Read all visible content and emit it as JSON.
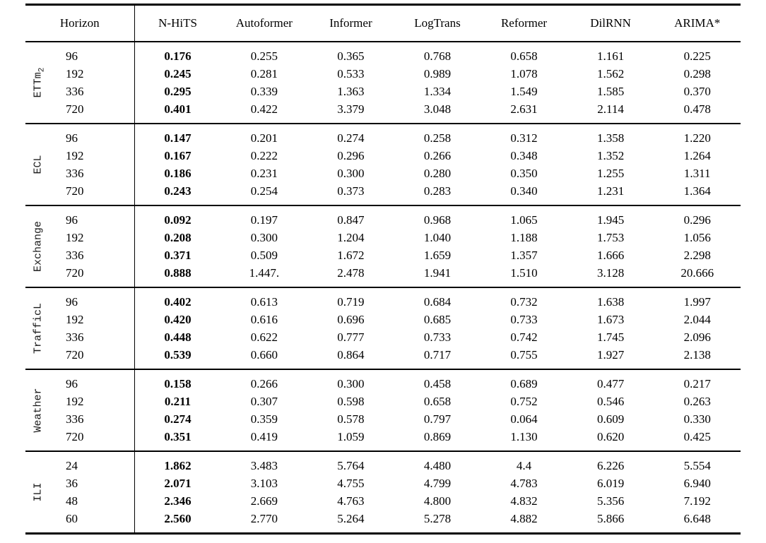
{
  "page": {
    "background_color": "#ffffff",
    "text_color": "#000000",
    "rule_color": "#000000"
  },
  "table": {
    "columns": [
      "Horizon",
      "N-HiTS",
      "Autoformer",
      "Informer",
      "LogTrans",
      "Reformer",
      "DilRNN",
      "ARIMA*"
    ],
    "bold_column": "N-HiTS",
    "groups": [
      {
        "label": "ETTm",
        "label_subscript": "2",
        "rows": [
          {
            "horizon": "96",
            "values": [
              "0.176",
              "0.255",
              "0.365",
              "0.768",
              "0.658",
              "1.161",
              "0.225"
            ]
          },
          {
            "horizon": "192",
            "values": [
              "0.245",
              "0.281",
              "0.533",
              "0.989",
              "1.078",
              "1.562",
              "0.298"
            ]
          },
          {
            "horizon": "336",
            "values": [
              "0.295",
              "0.339",
              "1.363",
              "1.334",
              "1.549",
              "1.585",
              "0.370"
            ]
          },
          {
            "horizon": "720",
            "values": [
              "0.401",
              "0.422",
              "3.379",
              "3.048",
              "2.631",
              "2.114",
              "0.478"
            ]
          }
        ]
      },
      {
        "label": "ECL",
        "label_subscript": "",
        "rows": [
          {
            "horizon": "96",
            "values": [
              "0.147",
              "0.201",
              "0.274",
              "0.258",
              "0.312",
              "1.358",
              "1.220"
            ]
          },
          {
            "horizon": "192",
            "values": [
              "0.167",
              "0.222",
              "0.296",
              "0.266",
              "0.348",
              "1.352",
              "1.264"
            ]
          },
          {
            "horizon": "336",
            "values": [
              "0.186",
              "0.231",
              "0.300",
              "0.280",
              "0.350",
              "1.255",
              "1.311"
            ]
          },
          {
            "horizon": "720",
            "values": [
              "0.243",
              "0.254",
              "0.373",
              "0.283",
              "0.340",
              "1.231",
              "1.364"
            ]
          }
        ]
      },
      {
        "label": "Exchange",
        "label_subscript": "",
        "rows": [
          {
            "horizon": "96",
            "values": [
              "0.092",
              "0.197",
              "0.847",
              "0.968",
              "1.065",
              "1.945",
              "0.296"
            ]
          },
          {
            "horizon": "192",
            "values": [
              "0.208",
              "0.300",
              "1.204",
              "1.040",
              "1.188",
              "1.753",
              "1.056"
            ]
          },
          {
            "horizon": "336",
            "values": [
              "0.371",
              "0.509",
              "1.672",
              "1.659",
              "1.357",
              "1.666",
              "2.298"
            ]
          },
          {
            "horizon": "720",
            "values": [
              "0.888",
              "1.447.",
              "2.478",
              "1.941",
              "1.510",
              "3.128",
              "20.666"
            ]
          }
        ]
      },
      {
        "label": "TrafficL",
        "label_subscript": "",
        "rows": [
          {
            "horizon": "96",
            "values": [
              "0.402",
              "0.613",
              "0.719",
              "0.684",
              "0.732",
              "1.638",
              "1.997"
            ]
          },
          {
            "horizon": "192",
            "values": [
              "0.420",
              "0.616",
              "0.696",
              "0.685",
              "0.733",
              "1.673",
              "2.044"
            ]
          },
          {
            "horizon": "336",
            "values": [
              "0.448",
              "0.622",
              "0.777",
              "0.733",
              "0.742",
              "1.745",
              "2.096"
            ]
          },
          {
            "horizon": "720",
            "values": [
              "0.539",
              "0.660",
              "0.864",
              "0.717",
              "0.755",
              "1.927",
              "2.138"
            ]
          }
        ]
      },
      {
        "label": "Weather",
        "label_subscript": "",
        "rows": [
          {
            "horizon": "96",
            "values": [
              "0.158",
              "0.266",
              "0.300",
              "0.458",
              "0.689",
              "0.477",
              "0.217"
            ]
          },
          {
            "horizon": "192",
            "values": [
              "0.211",
              "0.307",
              "0.598",
              "0.658",
              "0.752",
              "0.546",
              "0.263"
            ]
          },
          {
            "horizon": "336",
            "values": [
              "0.274",
              "0.359",
              "0.578",
              "0.797",
              "0.064",
              "0.609",
              "0.330"
            ]
          },
          {
            "horizon": "720",
            "values": [
              "0.351",
              "0.419",
              "1.059",
              "0.869",
              "1.130",
              "0.620",
              "0.425"
            ]
          }
        ]
      },
      {
        "label": "ILI",
        "label_subscript": "",
        "rows": [
          {
            "horizon": "24",
            "values": [
              "1.862",
              "3.483",
              "5.764",
              "4.480",
              "4.4",
              "6.226",
              "5.554"
            ]
          },
          {
            "horizon": "36",
            "values": [
              "2.071",
              "3.103",
              "4.755",
              "4.799",
              "4.783",
              "6.019",
              "6.940"
            ]
          },
          {
            "horizon": "48",
            "values": [
              "2.346",
              "2.669",
              "4.763",
              "4.800",
              "4.832",
              "5.356",
              "7.192"
            ]
          },
          {
            "horizon": "60",
            "values": [
              "2.560",
              "2.770",
              "5.264",
              "5.278",
              "4.882",
              "5.866",
              "6.648"
            ]
          }
        ]
      }
    ]
  }
}
